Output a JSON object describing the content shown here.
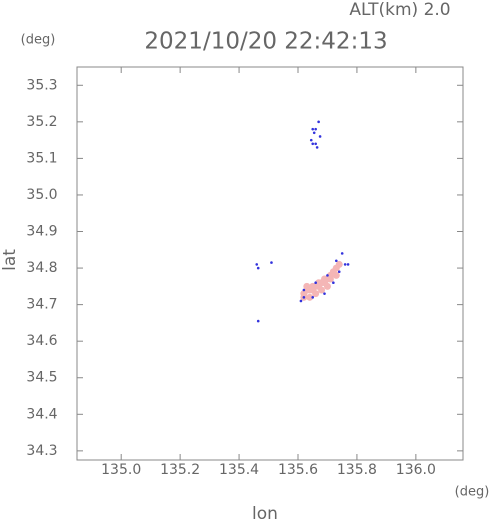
{
  "chart_data": {
    "type": "scatter",
    "title": "2021/10/20 22:42:13",
    "annotation": "ALT(km) 2.0",
    "y_unit": "(deg)",
    "x_unit": "(deg)",
    "xlabel": "lon",
    "ylabel": "lat",
    "xlim": [
      134.85,
      136.16
    ],
    "ylim": [
      34.275,
      35.35
    ],
    "xticks": [
      {
        "value": 135,
        "label": "135.0"
      },
      135.2,
      135.4,
      135.6,
      135.8,
      {
        "value": 136,
        "label": "136.0"
      }
    ],
    "yticks": [
      34.3,
      34.4,
      34.5,
      34.6,
      34.7,
      34.8,
      34.9,
      {
        "value": 35,
        "label": "35.0"
      },
      35.1,
      35.2,
      35.3
    ],
    "series": [
      {
        "color": "#f4b6b6",
        "x": [
          135.62,
          135.63,
          135.64,
          135.65,
          135.66,
          135.67,
          135.68,
          135.69,
          135.7,
          135.71,
          135.72,
          135.73,
          135.74,
          135.62,
          135.63,
          135.65,
          135.67,
          135.69,
          135.71,
          135.73,
          135.64,
          135.66,
          135.68,
          135.7
        ],
        "y": [
          34.73,
          34.74,
          34.74,
          34.75,
          34.75,
          34.76,
          34.76,
          34.77,
          34.77,
          34.78,
          34.79,
          34.8,
          34.81,
          34.72,
          34.75,
          34.74,
          34.75,
          34.76,
          34.77,
          34.78,
          34.72,
          34.73,
          34.74,
          34.75
        ]
      },
      {
        "color": "#3333dd",
        "x": [
          135.645,
          135.65,
          135.655,
          135.66,
          135.665,
          135.67,
          135.675,
          135.65,
          135.66,
          135.46,
          135.465,
          135.51,
          135.465,
          135.61,
          135.62,
          135.65,
          135.69,
          135.72,
          135.74,
          135.75,
          135.76,
          135.77,
          135.73,
          135.7,
          135.66,
          135.62
        ],
        "y": [
          35.15,
          35.14,
          35.17,
          35.18,
          35.13,
          35.2,
          35.16,
          35.18,
          35.14,
          34.81,
          34.8,
          34.815,
          34.655,
          34.71,
          34.72,
          34.72,
          34.73,
          34.76,
          34.79,
          34.84,
          34.81,
          34.81,
          34.82,
          34.78,
          34.76,
          34.74
        ]
      }
    ]
  }
}
